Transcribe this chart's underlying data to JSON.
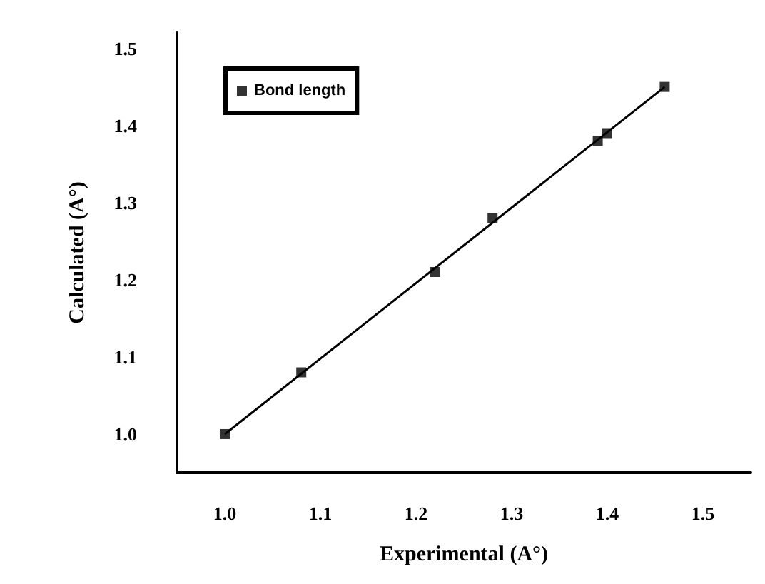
{
  "chart_data": {
    "type": "scatter",
    "xlabel": "Experimental (A°)",
    "ylabel": "Calculated (A°)",
    "xlim": [
      0.95,
      1.55
    ],
    "xticks": [
      {
        "value": 1.0,
        "label": "1.0"
      },
      1.1,
      1.2,
      1.3,
      1.4,
      1.5
    ],
    "ylim": [
      0.95,
      1.52
    ],
    "yticks": [
      {
        "value": 1.0,
        "label": "1.0"
      },
      1.1,
      1.2,
      1.3,
      1.4,
      1.5
    ],
    "series": [
      {
        "name": "Bond length",
        "marker": "square",
        "color": "#000000",
        "x": [
          1.0,
          1.08,
          1.22,
          1.28,
          1.39,
          1.4,
          1.46
        ],
        "values": [
          1.0,
          1.08,
          1.21,
          1.28,
          1.38,
          1.39,
          1.45
        ]
      },
      {
        "type": "line",
        "marker": "none",
        "color": "#000000",
        "x": [
          1.0,
          1.46
        ],
        "values": [
          1.0,
          1.45
        ]
      }
    ],
    "legend": "top left",
    "grid": false
  }
}
